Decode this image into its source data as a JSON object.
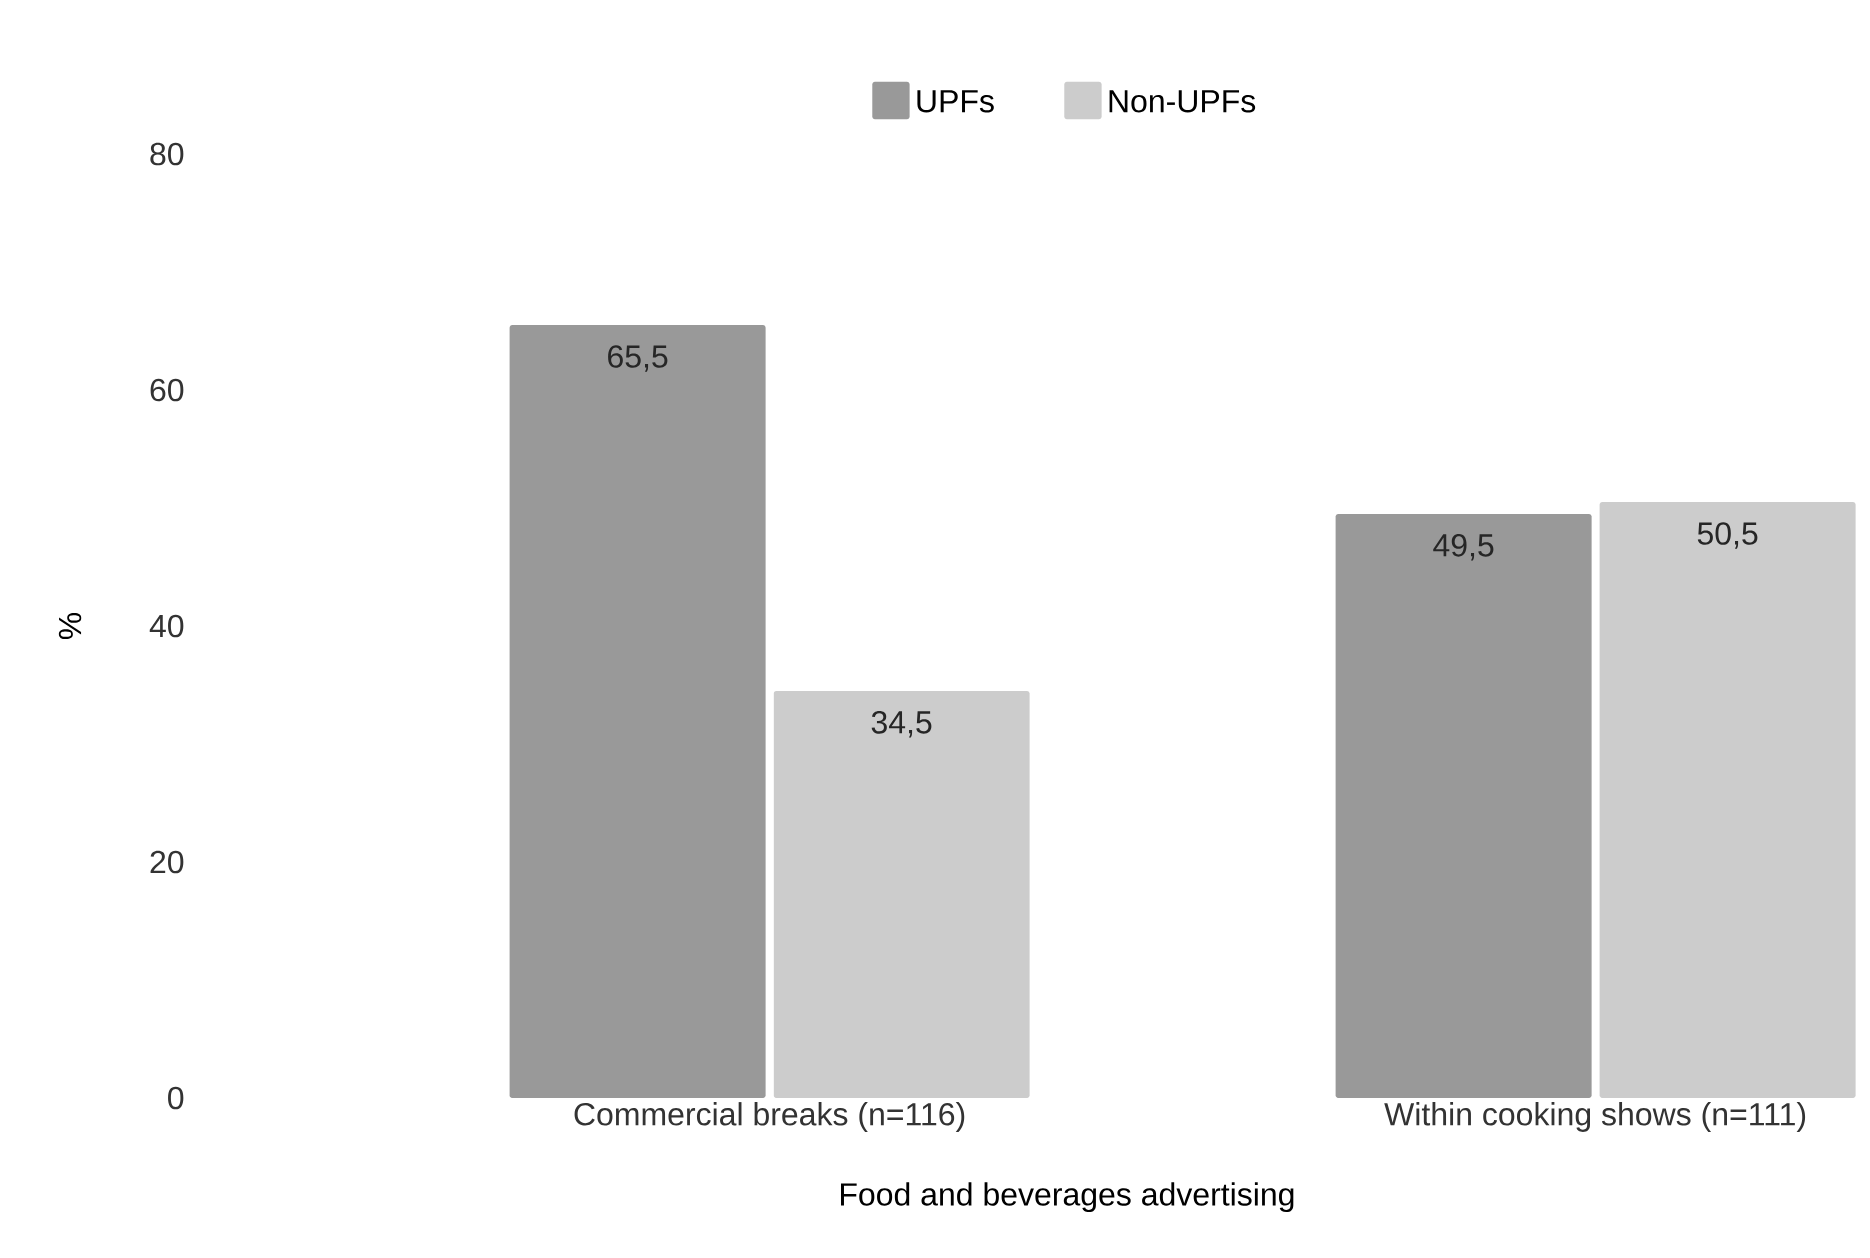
{
  "chart_data": {
    "type": "bar",
    "xlabel": "Food and beverages advertising",
    "ylabel": "%",
    "categories": [
      "Commercial breaks (n=116)",
      "Within cooking shows (n=111)"
    ],
    "series": [
      {
        "name": "UPFs",
        "color": "#999999",
        "values": [
          65.5,
          49.5
        ],
        "value_labels": [
          "65,5",
          "49,5"
        ]
      },
      {
        "name": "Non-UPFs",
        "color": "#cccccc",
        "values": [
          34.5,
          50.5
        ],
        "value_labels": [
          "34,5",
          "50,5"
        ]
      }
    ],
    "ylim": [
      0,
      80
    ],
    "yticks": [
      0,
      20,
      40,
      60,
      80
    ],
    "legend": "top"
  }
}
